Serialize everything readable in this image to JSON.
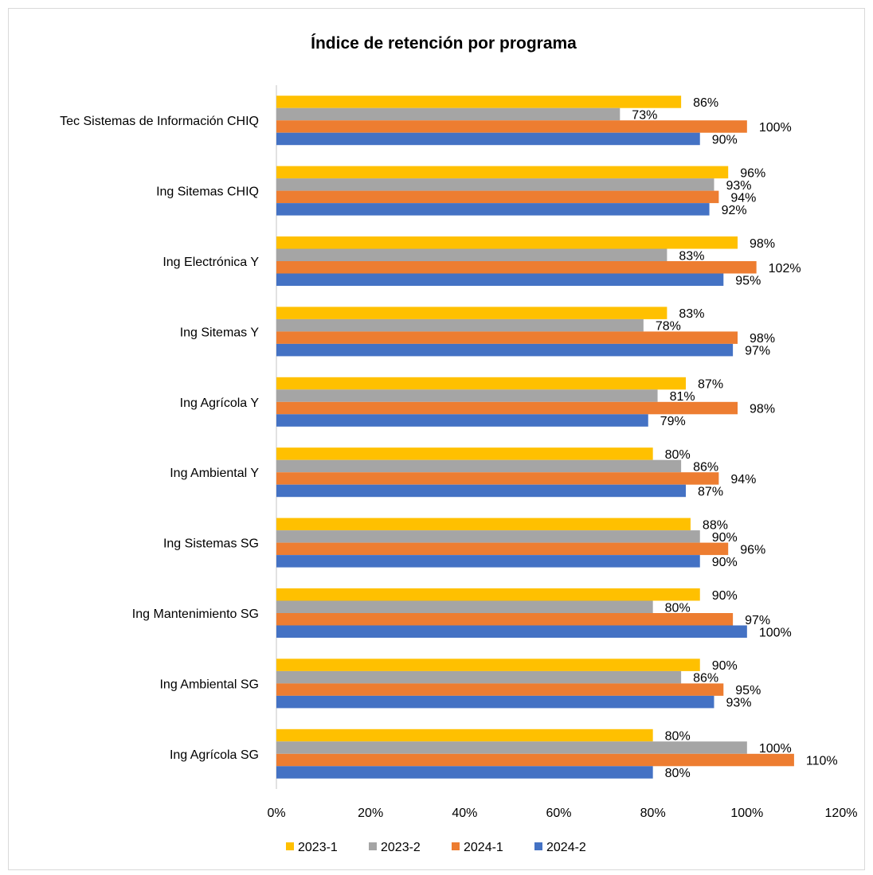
{
  "chart_data": {
    "type": "bar",
    "orientation": "horizontal",
    "title": "Índice de retención por programa",
    "xlabel": "",
    "ylabel": "",
    "xlim": [
      0,
      120
    ],
    "x_ticks": [
      "0%",
      "20%",
      "40%",
      "60%",
      "80%",
      "100%",
      "120%"
    ],
    "grid": false,
    "legend_position": "bottom",
    "value_suffix": "%",
    "categories": [
      "Tec Sistemas de Información CHIQ",
      "Ing Sitemas CHIQ",
      "Ing Electrónica Y",
      "Ing Sitemas Y",
      "Ing Agrícola Y",
      "Ing Ambiental Y",
      "Ing Sistemas SG",
      "Ing Mantenimiento SG",
      "Ing Ambiental SG",
      "Ing Agrícola SG"
    ],
    "series": [
      {
        "name": "2023-1",
        "color": "#FFC000",
        "values": [
          86,
          96,
          98,
          83,
          87,
          80,
          88,
          90,
          90,
          80
        ]
      },
      {
        "name": "2023-2",
        "color": "#A5A5A5",
        "values": [
          73,
          93,
          83,
          78,
          81,
          86,
          90,
          80,
          86,
          100
        ]
      },
      {
        "name": "2024-1",
        "color": "#ED7D31",
        "values": [
          100,
          94,
          102,
          98,
          98,
          94,
          96,
          97,
          95,
          110
        ]
      },
      {
        "name": "2024-2",
        "color": "#4472C4",
        "values": [
          90,
          92,
          95,
          97,
          79,
          87,
          90,
          100,
          93,
          80
        ]
      }
    ]
  }
}
